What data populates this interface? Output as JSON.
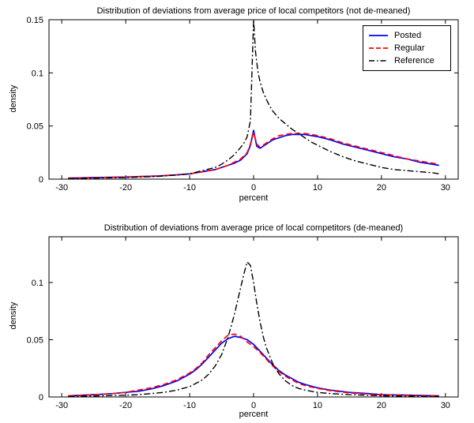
{
  "figure": {
    "background": "#ffffff"
  },
  "colors": {
    "posted": "#0000ff",
    "regular": "#ff0000",
    "reference": "#000000"
  },
  "chart_data": [
    {
      "type": "line",
      "title": "Distribution of deviations from average price of local competitors (not de-meaned)",
      "xlabel": "percent",
      "ylabel": "density",
      "xlim": [
        -32,
        32
      ],
      "ylim": [
        0,
        0.15
      ],
      "xticks": [
        -30,
        -20,
        -10,
        0,
        10,
        20,
        30
      ],
      "xtick_labels": [
        "-30",
        "-20",
        "-10",
        "0",
        "10",
        "20",
        "30"
      ],
      "yticks": [
        0,
        0.05,
        0.1,
        0.15
      ],
      "ytick_labels": [
        "0",
        "0.05",
        "0.1",
        "0.15"
      ],
      "grid": false,
      "legend": {
        "position": "top-right",
        "entries": [
          "Posted",
          "Regular",
          "Reference"
        ]
      },
      "series": [
        {
          "name": "Posted",
          "color": "#0000ff",
          "style": "solid",
          "points": [
            [
              -29,
              0.001
            ],
            [
              -25,
              0.0015
            ],
            [
              -20,
              0.002
            ],
            [
              -15,
              0.003
            ],
            [
              -12,
              0.004
            ],
            [
              -10,
              0.005
            ],
            [
              -8,
              0.007
            ],
            [
              -6,
              0.009
            ],
            [
              -5,
              0.011
            ],
            [
              -4,
              0.013
            ],
            [
              -3,
              0.015
            ],
            [
              -2,
              0.018
            ],
            [
              -1,
              0.024
            ],
            [
              -0.5,
              0.032
            ],
            [
              0,
              0.046
            ],
            [
              0.5,
              0.031
            ],
            [
              1,
              0.029
            ],
            [
              2,
              0.033
            ],
            [
              3,
              0.037
            ],
            [
              4,
              0.039
            ],
            [
              5,
              0.041
            ],
            [
              6,
              0.042
            ],
            [
              7,
              0.042
            ],
            [
              8,
              0.042
            ],
            [
              9,
              0.041
            ],
            [
              10,
              0.04
            ],
            [
              12,
              0.037
            ],
            [
              14,
              0.033
            ],
            [
              16,
              0.03
            ],
            [
              18,
              0.027
            ],
            [
              20,
              0.024
            ],
            [
              22,
              0.021
            ],
            [
              24,
              0.019
            ],
            [
              26,
              0.016
            ],
            [
              28,
              0.014
            ],
            [
              29,
              0.013
            ]
          ]
        },
        {
          "name": "Regular",
          "color": "#ff0000",
          "style": "dashed",
          "points": [
            [
              -29,
              0.001
            ],
            [
              -25,
              0.0015
            ],
            [
              -20,
              0.002
            ],
            [
              -15,
              0.003
            ],
            [
              -12,
              0.004
            ],
            [
              -10,
              0.005
            ],
            [
              -8,
              0.007
            ],
            [
              -6,
              0.009
            ],
            [
              -5,
              0.011
            ],
            [
              -4,
              0.013
            ],
            [
              -3,
              0.016
            ],
            [
              -2,
              0.019
            ],
            [
              -1,
              0.025
            ],
            [
              -0.5,
              0.033
            ],
            [
              0,
              0.044
            ],
            [
              0.5,
              0.033
            ],
            [
              1,
              0.03
            ],
            [
              2,
              0.034
            ],
            [
              3,
              0.038
            ],
            [
              4,
              0.041
            ],
            [
              5,
              0.042
            ],
            [
              6,
              0.043
            ],
            [
              7,
              0.043
            ],
            [
              8,
              0.043
            ],
            [
              9,
              0.042
            ],
            [
              10,
              0.041
            ],
            [
              12,
              0.038
            ],
            [
              14,
              0.034
            ],
            [
              16,
              0.031
            ],
            [
              18,
              0.028
            ],
            [
              20,
              0.025
            ],
            [
              22,
              0.022
            ],
            [
              24,
              0.019
            ],
            [
              26,
              0.017
            ],
            [
              28,
              0.015
            ],
            [
              29,
              0.014
            ]
          ]
        },
        {
          "name": "Reference",
          "color": "#000000",
          "style": "dashdot",
          "points": [
            [
              -29,
              0.0005
            ],
            [
              -25,
              0.001
            ],
            [
              -20,
              0.0015
            ],
            [
              -15,
              0.0025
            ],
            [
              -12,
              0.004
            ],
            [
              -10,
              0.005
            ],
            [
              -8,
              0.008
            ],
            [
              -6,
              0.011
            ],
            [
              -5,
              0.014
            ],
            [
              -4,
              0.018
            ],
            [
              -3,
              0.023
            ],
            [
              -2,
              0.03
            ],
            [
              -1.5,
              0.034
            ],
            [
              -1,
              0.04
            ],
            [
              -0.5,
              0.055
            ],
            [
              0,
              0.15
            ],
            [
              0.3,
              0.12
            ],
            [
              0.7,
              0.1
            ],
            [
              1,
              0.092
            ],
            [
              1.5,
              0.082
            ],
            [
              2,
              0.075
            ],
            [
              2.5,
              0.069
            ],
            [
              3,
              0.064
            ],
            [
              4,
              0.057
            ],
            [
              5,
              0.052
            ],
            [
              6,
              0.047
            ],
            [
              7,
              0.043
            ],
            [
              8,
              0.039
            ],
            [
              9,
              0.035
            ],
            [
              10,
              0.032
            ],
            [
              12,
              0.026
            ],
            [
              14,
              0.021
            ],
            [
              16,
              0.017
            ],
            [
              18,
              0.014
            ],
            [
              20,
              0.011
            ],
            [
              22,
              0.009
            ],
            [
              24,
              0.008
            ],
            [
              26,
              0.007
            ],
            [
              28,
              0.006
            ],
            [
              29,
              0.005
            ]
          ]
        }
      ]
    },
    {
      "type": "line",
      "title": "Distribution of deviations from average price of local competitors (de-meaned)",
      "xlabel": "percent",
      "ylabel": "density",
      "xlim": [
        -32,
        32
      ],
      "ylim": [
        0,
        0.14
      ],
      "xticks": [
        -30,
        -20,
        -10,
        0,
        10,
        20,
        30
      ],
      "xtick_labels": [
        "-30",
        "-20",
        "-10",
        "0",
        "10",
        "20",
        "30"
      ],
      "yticks": [
        0,
        0.05,
        0.1
      ],
      "ytick_labels": [
        "0",
        "0.05",
        "0.1"
      ],
      "grid": false,
      "legend": null,
      "series": [
        {
          "name": "Posted",
          "color": "#0000ff",
          "style": "solid",
          "points": [
            [
              -29,
              0.001
            ],
            [
              -25,
              0.002
            ],
            [
              -22,
              0.003
            ],
            [
              -20,
              0.004
            ],
            [
              -18,
              0.005
            ],
            [
              -16,
              0.007
            ],
            [
              -14,
              0.01
            ],
            [
              -12,
              0.014
            ],
            [
              -10,
              0.02
            ],
            [
              -9,
              0.024
            ],
            [
              -8,
              0.029
            ],
            [
              -7,
              0.035
            ],
            [
              -6,
              0.041
            ],
            [
              -5,
              0.047
            ],
            [
              -4,
              0.051
            ],
            [
              -3,
              0.053
            ],
            [
              -2,
              0.052
            ],
            [
              -1,
              0.05
            ],
            [
              0,
              0.046
            ],
            [
              1,
              0.04
            ],
            [
              2,
              0.034
            ],
            [
              3,
              0.028
            ],
            [
              4,
              0.023
            ],
            [
              5,
              0.019
            ],
            [
              6,
              0.016
            ],
            [
              7,
              0.013
            ],
            [
              8,
              0.011
            ],
            [
              10,
              0.008
            ],
            [
              12,
              0.006
            ],
            [
              15,
              0.004
            ],
            [
              18,
              0.003
            ],
            [
              20,
              0.002
            ],
            [
              25,
              0.0015
            ],
            [
              29,
              0.001
            ]
          ]
        },
        {
          "name": "Regular",
          "color": "#ff0000",
          "style": "dashed",
          "points": [
            [
              -29,
              0.001
            ],
            [
              -25,
              0.002
            ],
            [
              -22,
              0.003
            ],
            [
              -20,
              0.004
            ],
            [
              -18,
              0.006
            ],
            [
              -16,
              0.008
            ],
            [
              -14,
              0.011
            ],
            [
              -12,
              0.015
            ],
            [
              -10,
              0.021
            ],
            [
              -9,
              0.025
            ],
            [
              -8,
              0.03
            ],
            [
              -7,
              0.037
            ],
            [
              -6,
              0.043
            ],
            [
              -5,
              0.049
            ],
            [
              -4,
              0.054
            ],
            [
              -3,
              0.055
            ],
            [
              -2,
              0.053
            ],
            [
              -1,
              0.048
            ],
            [
              0,
              0.044
            ],
            [
              1,
              0.039
            ],
            [
              2,
              0.033
            ],
            [
              3,
              0.027
            ],
            [
              4,
              0.022
            ],
            [
              5,
              0.018
            ],
            [
              6,
              0.015
            ],
            [
              7,
              0.012
            ],
            [
              8,
              0.01
            ],
            [
              10,
              0.0075
            ],
            [
              12,
              0.0055
            ],
            [
              15,
              0.0035
            ],
            [
              18,
              0.0025
            ],
            [
              20,
              0.002
            ],
            [
              25,
              0.0013
            ],
            [
              29,
              0.001
            ]
          ]
        },
        {
          "name": "Reference",
          "color": "#000000",
          "style": "dashdot",
          "points": [
            [
              -29,
              0.0005
            ],
            [
              -25,
              0.0008
            ],
            [
              -20,
              0.0015
            ],
            [
              -18,
              0.002
            ],
            [
              -16,
              0.003
            ],
            [
              -14,
              0.004
            ],
            [
              -12,
              0.006
            ],
            [
              -10,
              0.009
            ],
            [
              -9,
              0.012
            ],
            [
              -8,
              0.015
            ],
            [
              -7,
              0.02
            ],
            [
              -6,
              0.027
            ],
            [
              -5,
              0.037
            ],
            [
              -4,
              0.052
            ],
            [
              -3,
              0.072
            ],
            [
              -2,
              0.096
            ],
            [
              -1.5,
              0.108
            ],
            [
              -1,
              0.118
            ],
            [
              -0.5,
              0.115
            ],
            [
              0,
              0.1
            ],
            [
              0.5,
              0.082
            ],
            [
              1,
              0.066
            ],
            [
              1.5,
              0.053
            ],
            [
              2,
              0.043
            ],
            [
              3,
              0.029
            ],
            [
              4,
              0.02
            ],
            [
              5,
              0.014
            ],
            [
              6,
              0.01
            ],
            [
              7,
              0.0075
            ],
            [
              8,
              0.006
            ],
            [
              10,
              0.004
            ],
            [
              12,
              0.003
            ],
            [
              15,
              0.002
            ],
            [
              18,
              0.0015
            ],
            [
              20,
              0.001
            ],
            [
              25,
              0.0007
            ],
            [
              29,
              0.0005
            ]
          ]
        }
      ]
    }
  ]
}
